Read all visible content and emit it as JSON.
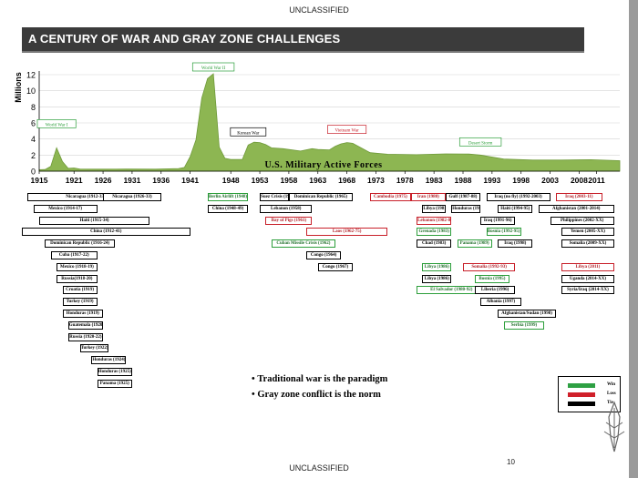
{
  "classification_top": "UNCLASSIFIED",
  "classification_bottom": "UNCLASSIFIED",
  "title": "A CENTURY OF WAR AND GRAY ZONE CHALLENGES",
  "page_number": "10",
  "bullets": [
    "Traditional war is the paradigm",
    "Gray zone conflict is the norm"
  ],
  "legend": [
    {
      "label": "Win",
      "color": "#2ea043"
    },
    {
      "label": "Loss",
      "color": "#d0202a"
    },
    {
      "label": "Tie",
      "color": "#000000"
    }
  ],
  "colors": {
    "area": "#8db652",
    "area_stroke": "#6f9a3a",
    "win": "#2c9e3a",
    "loss": "#c8202a",
    "tie": "#000000"
  },
  "chart_data": {
    "type": "area",
    "title": "U.S. Military Active Forces",
    "ylabel": "Millions",
    "xlabel": "",
    "xlim": [
      1915,
      2015
    ],
    "ylim": [
      0,
      12
    ],
    "y_ticks": [
      "0",
      "2",
      "4",
      "6",
      "8",
      "10",
      "12"
    ],
    "x_ticks": [
      "1915",
      "1921",
      "1926",
      "1931",
      "1936",
      "1941",
      "1948",
      "1953",
      "1958",
      "1963",
      "1968",
      "1973",
      "1978",
      "1983",
      "1988",
      "1993",
      "1998",
      "2003",
      "2008",
      "2011"
    ],
    "grid": true,
    "x": [
      1915,
      1916,
      1917,
      1918,
      1919,
      1920,
      1921,
      1922,
      1925,
      1930,
      1935,
      1939,
      1940,
      1941,
      1942,
      1943,
      1944,
      1945,
      1946,
      1947,
      1948,
      1950,
      1951,
      1952,
      1953,
      1954,
      1955,
      1957,
      1960,
      1962,
      1963,
      1965,
      1966,
      1967,
      1968,
      1969,
      1970,
      1972,
      1975,
      1980,
      1985,
      1989,
      1991,
      1995,
      2000,
      2005,
      2010,
      2015
    ],
    "values": [
      0.18,
      0.2,
      0.6,
      2.9,
      1.2,
      0.35,
      0.4,
      0.27,
      0.25,
      0.26,
      0.25,
      0.33,
      0.46,
      1.8,
      3.9,
      9.1,
      11.5,
      12.1,
      3.0,
      1.6,
      1.45,
      1.46,
      3.25,
      3.6,
      3.55,
      3.3,
      2.9,
      2.8,
      2.5,
      2.8,
      2.7,
      2.65,
      3.1,
      3.4,
      3.55,
      3.46,
      3.07,
      2.3,
      2.1,
      2.05,
      2.15,
      2.13,
      2.0,
      1.52,
      1.38,
      1.38,
      1.43,
      1.3
    ],
    "annotations": [
      {
        "label": "World War I",
        "x": 1918
      },
      {
        "label": "World War II",
        "x": 1945
      },
      {
        "label": "Korean War",
        "x": 1951
      },
      {
        "label": "Vietnam War",
        "x": 1968
      },
      {
        "label": "Desert Storm",
        "x": 1991
      }
    ],
    "events": [
      {
        "label": "Nicaragua (1912-33)",
        "outcome": "tie",
        "row": 0,
        "start": 1913,
        "end": 1933
      },
      {
        "label": "Nicaragua (1926-33)",
        "outcome": "tie",
        "row": 0,
        "start": 1926,
        "end": 1936
      },
      {
        "label": "Mexico (1914-17)",
        "outcome": "tie",
        "row": 1,
        "start": 1914,
        "end": 1925
      },
      {
        "label": "Haiti (1915-34)",
        "outcome": "tie",
        "row": 2,
        "start": 1915,
        "end": 1934
      },
      {
        "label": "China (1912-41)",
        "outcome": "tie",
        "row": 3,
        "start": 1912,
        "end": 1941
      },
      {
        "label": "Dominican Republic (1916-24)",
        "outcome": "tie",
        "row": 4,
        "start": 1916,
        "end": 1928
      },
      {
        "label": "Cuba (1917-22)",
        "outcome": "tie",
        "row": 5,
        "start": 1917,
        "end": 1925
      },
      {
        "label": "Mexico (1918-19)",
        "outcome": "tie",
        "row": 6,
        "start": 1918,
        "end": 1925
      },
      {
        "label": "Russia(1918-20)",
        "outcome": "tie",
        "row": 7,
        "start": 1918,
        "end": 1925
      },
      {
        "label": "Croatia (1919)",
        "outcome": "tie",
        "row": 8,
        "start": 1919,
        "end": 1925
      },
      {
        "label": "Turkey (1919)",
        "outcome": "tie",
        "row": 9,
        "start": 1919,
        "end": 1925
      },
      {
        "label": "Honduras (1919)",
        "outcome": "tie",
        "row": 10,
        "start": 1919,
        "end": 1926
      },
      {
        "label": "Guatemala (1920)",
        "outcome": "tie",
        "row": 11,
        "start": 1920,
        "end": 1926
      },
      {
        "label": "Russia (1920-22)",
        "outcome": "tie",
        "row": 12,
        "start": 1920,
        "end": 1926
      },
      {
        "label": "Turkey (1922)",
        "outcome": "tie",
        "row": 13,
        "start": 1922,
        "end": 1927
      },
      {
        "label": "Honduras (1924)",
        "outcome": "tie",
        "row": 14,
        "start": 1924,
        "end": 1930
      },
      {
        "label": "Honduras (1925)",
        "outcome": "tie",
        "row": 15,
        "start": 1925,
        "end": 1931
      },
      {
        "label": "Panama (1925)",
        "outcome": "tie",
        "row": 16,
        "start": 1925,
        "end": 1931
      },
      {
        "label": "Berlin Airlift (1948)",
        "outcome": "win",
        "row": 0,
        "start": 1944,
        "end": 1951
      },
      {
        "label": "China (1948-49)",
        "outcome": "tie",
        "row": 1,
        "start": 1944,
        "end": 1951
      },
      {
        "label": "Suez Crisis (1956)",
        "outcome": "tie",
        "row": 0,
        "start": 1953,
        "end": 1958
      },
      {
        "label": "Dominican Republic (1965)",
        "outcome": "tie",
        "row": 0,
        "start": 1958,
        "end": 1969
      },
      {
        "label": "Lebanon (1958)",
        "outcome": "tie",
        "row": 1,
        "start": 1953,
        "end": 1962
      },
      {
        "label": "Bay of Pigs (1961)",
        "outcome": "loss",
        "row": 2,
        "start": 1954,
        "end": 1962
      },
      {
        "label": "Laos (1962-75)",
        "outcome": "loss",
        "row": 3,
        "start": 1961,
        "end": 1975
      },
      {
        "label": "Cuban Missile Crisis (1962)",
        "outcome": "win",
        "row": 4,
        "start": 1955,
        "end": 1966
      },
      {
        "label": "Congo (1964)",
        "outcome": "tie",
        "row": 5,
        "start": 1961,
        "end": 1967
      },
      {
        "label": "Congo (1967)",
        "outcome": "tie",
        "row": 6,
        "start": 1963,
        "end": 1969
      },
      {
        "label": "Cambodia (1975)",
        "outcome": "loss",
        "row": 0,
        "start": 1972,
        "end": 1979
      },
      {
        "label": "Iran (1980)",
        "outcome": "loss",
        "row": 0,
        "start": 1979,
        "end": 1985
      },
      {
        "label": "Gulf (1987-88)",
        "outcome": "tie",
        "row": 0,
        "start": 1985,
        "end": 1991
      },
      {
        "label": "Iraq (no fly) (1992-2003)",
        "outcome": "tie",
        "row": 0,
        "start": 1992,
        "end": 2003
      },
      {
        "label": "Iraq (2003-11)",
        "outcome": "loss",
        "row": 0,
        "start": 2004,
        "end": 2012
      },
      {
        "label": "Libya (1981)",
        "outcome": "tie",
        "row": 1,
        "start": 1981,
        "end": 1985
      },
      {
        "label": "Honduras (1988)",
        "outcome": "tie",
        "row": 1,
        "start": 1986,
        "end": 1991
      },
      {
        "label": "Haiti (1994-95)",
        "outcome": "tie",
        "row": 1,
        "start": 1994,
        "end": 2000
      },
      {
        "label": "Afghanistan (2001-2014)",
        "outcome": "tie",
        "row": 1,
        "start": 2001,
        "end": 2014
      },
      {
        "label": "Lebanon (1982-83)",
        "outcome": "loss",
        "row": 2,
        "start": 1980,
        "end": 1986
      },
      {
        "label": "Iraq (1991-96)",
        "outcome": "tie",
        "row": 2,
        "start": 1991,
        "end": 1997
      },
      {
        "label": "Philippines (2002-XX)",
        "outcome": "tie",
        "row": 2,
        "start": 2003,
        "end": 2014
      },
      {
        "label": "Grenada (1983)",
        "outcome": "win",
        "row": 3,
        "start": 1980,
        "end": 1986
      },
      {
        "label": "Bosnia (1992-95)",
        "outcome": "win",
        "row": 3,
        "start": 1992,
        "end": 1998
      },
      {
        "label": "Yemen (2005-XX)",
        "outcome": "tie",
        "row": 3,
        "start": 2005,
        "end": 2014
      },
      {
        "label": "Chad (1983)",
        "outcome": "tie",
        "row": 4,
        "start": 1980,
        "end": 1986
      },
      {
        "label": "Panama (1989)",
        "outcome": "win",
        "row": 4,
        "start": 1987,
        "end": 1993
      },
      {
        "label": "Iraq (1998)",
        "outcome": "tie",
        "row": 4,
        "start": 1994,
        "end": 2000
      },
      {
        "label": "Somalia (2009-XX)",
        "outcome": "tie",
        "row": 4,
        "start": 2005,
        "end": 2014
      },
      {
        "label": "Libya (1986)",
        "outcome": "win",
        "row": 6,
        "start": 1981,
        "end": 1986
      },
      {
        "label": "Somalia (1992-93)",
        "outcome": "loss",
        "row": 6,
        "start": 1988,
        "end": 1997
      },
      {
        "label": "Libya (2011)",
        "outcome": "loss",
        "row": 6,
        "start": 2005,
        "end": 2014
      },
      {
        "label": "Libya (1986)",
        "outcome": "tie",
        "row": 7,
        "start": 1981,
        "end": 1986
      },
      {
        "label": "Bosnia (1995)",
        "outcome": "win",
        "row": 7,
        "start": 1990,
        "end": 1996
      },
      {
        "label": "Uganda (2014-XX)",
        "outcome": "tie",
        "row": 7,
        "start": 2005,
        "end": 2014
      },
      {
        "label": "El Salvador (1980-92)",
        "outcome": "win",
        "row": 8,
        "start": 1980,
        "end": 1992
      },
      {
        "label": "Liberia (1996)",
        "outcome": "tie",
        "row": 8,
        "start": 1990,
        "end": 1997
      },
      {
        "label": "Syria/Iraq (2014-XX)",
        "outcome": "tie",
        "row": 8,
        "start": 2005,
        "end": 2014
      },
      {
        "label": "Albania (1997)",
        "outcome": "tie",
        "row": 9,
        "start": 1991,
        "end": 1998
      },
      {
        "label": "Afghanistan/Sudan (1998)",
        "outcome": "tie",
        "row": 10,
        "start": 1994,
        "end": 2004
      },
      {
        "label": "Serbia (1999)",
        "outcome": "win",
        "row": 11,
        "start": 1995,
        "end": 2002
      }
    ]
  }
}
